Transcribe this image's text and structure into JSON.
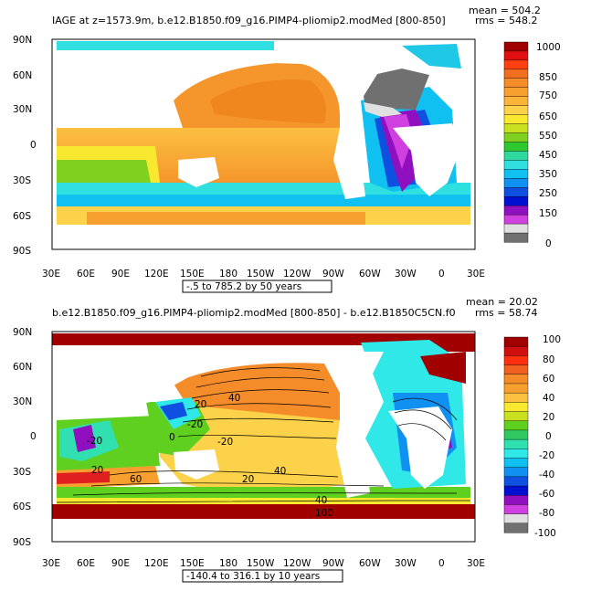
{
  "chart_data": [
    {
      "type": "heatmap",
      "title": "IAGE at z=1573.9m, b.e12.B1850.f09_g16.PIMP4-pliomip2.modMed [800-850]",
      "stats": {
        "mean": "mean = 504.2",
        "rms": "rms = 548.2"
      },
      "x_tick_labels": [
        "30E",
        "60E",
        "90E",
        "120E",
        "150E",
        "180",
        "150W",
        "120W",
        "90W",
        "60W",
        "30W",
        "0",
        "30E"
      ],
      "y_tick_labels": [
        "90N",
        "60N",
        "30N",
        "0",
        "30S",
        "60S",
        "90S"
      ],
      "ylim": [
        -90,
        90
      ],
      "contour_info": "-.5 to 785.2 by 50 years",
      "colorbar": {
        "labels": [
          "1000",
          "850",
          "750",
          "650",
          "550",
          "450",
          "350",
          "250",
          "150",
          "0"
        ],
        "colors": [
          "#a00000",
          "#e01010",
          "#ff4010",
          "#f07020",
          "#f58c2a",
          "#f7a030",
          "#fbb43a",
          "#fcd24a",
          "#f8e830",
          "#c8e020",
          "#80d020",
          "#30c830",
          "#30d8a0",
          "#30e0e0",
          "#10c0f0",
          "#1090f0",
          "#1050e0",
          "#0010d0",
          "#9010c0",
          "#d040e0",
          "#e0e0e0",
          "#707070"
        ]
      },
      "grid": false,
      "legend_position": "right"
    },
    {
      "type": "heatmap",
      "title": "b.e12.B1850.f09_g16.PIMP4-pliomip2.modMed [800-850] - b.e12.B1850C5CN.f0",
      "stats": {
        "mean": "mean = 20.02",
        "rms": "rms = 58.74"
      },
      "x_tick_labels": [
        "30E",
        "60E",
        "90E",
        "120E",
        "150E",
        "180",
        "150W",
        "120W",
        "90W",
        "60W",
        "30W",
        "0",
        "30E"
      ],
      "y_tick_labels": [
        "90N",
        "60N",
        "30N",
        "0",
        "30S",
        "60S",
        "90S"
      ],
      "ylim": [
        -90,
        90
      ],
      "contour_info": "-140.4 to 316.1 by 10 years",
      "contour_labels": [
        "40",
        "20",
        "-20",
        "-20",
        "0",
        "60",
        "20",
        "40",
        "-20",
        "20",
        "40",
        "100"
      ],
      "colorbar": {
        "labels": [
          "100",
          "80",
          "60",
          "40",
          "20",
          "0",
          "-20",
          "-40",
          "-60",
          "-80",
          "-100"
        ],
        "colors": [
          "#a00000",
          "#d01010",
          "#ff3010",
          "#f06020",
          "#f58c2a",
          "#f7a030",
          "#fbc040",
          "#f8e830",
          "#c8e020",
          "#60d020",
          "#30c860",
          "#30e0b0",
          "#30e8e8",
          "#10c0f0",
          "#1090f0",
          "#1050e0",
          "#0010d0",
          "#9010c0",
          "#d040e0",
          "#e0e0e0",
          "#707070"
        ]
      },
      "grid": false,
      "legend_position": "right"
    }
  ]
}
